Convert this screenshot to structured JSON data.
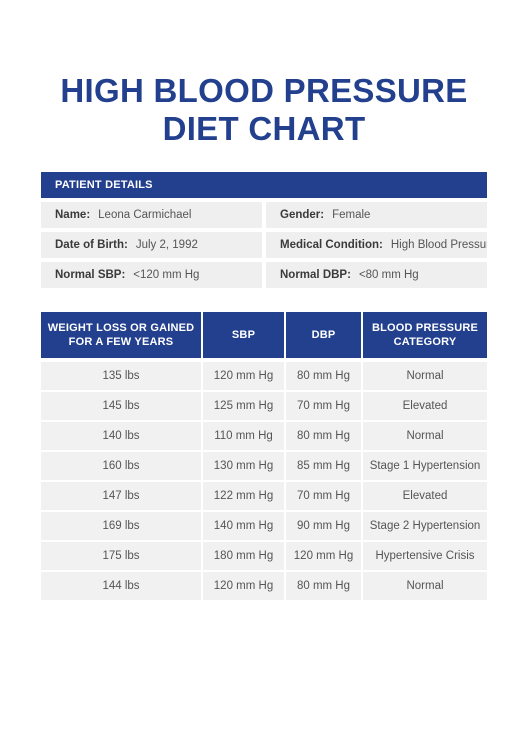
{
  "title": {
    "line1": "HIGH BLOOD PRESSURE",
    "line2": "DIET CHART"
  },
  "patient": {
    "header": "PATIENT DETAILS",
    "rows": [
      [
        {
          "label": "Name:",
          "value": "Leona Carmichael"
        },
        {
          "label": "Gender:",
          "value": "Female"
        }
      ],
      [
        {
          "label": "Date of Birth:",
          "value": "July 2, 1992"
        },
        {
          "label": "Medical Condition:",
          "value": "High Blood Pressure"
        }
      ],
      [
        {
          "label": "Normal SBP:",
          "value": "<120 mm Hg"
        },
        {
          "label": "Normal DBP:",
          "value": "<80 mm Hg"
        }
      ]
    ]
  },
  "table": {
    "headers": [
      "WEIGHT LOSS OR GAINED FOR A FEW YEARS",
      "SBP",
      "DBP",
      "BLOOD PRESSURE CATEGORY"
    ],
    "rows": [
      [
        "135 lbs",
        "120 mm Hg",
        "80 mm Hg",
        "Normal"
      ],
      [
        "145 lbs",
        "125 mm Hg",
        "70 mm Hg",
        "Elevated"
      ],
      [
        "140 lbs",
        "110 mm Hg",
        "80 mm Hg",
        "Normal"
      ],
      [
        "160 lbs",
        "130 mm Hg",
        "85 mm Hg",
        "Stage 1 Hypertension"
      ],
      [
        "147 lbs",
        "122 mm Hg",
        "70 mm Hg",
        "Elevated"
      ],
      [
        "169 lbs",
        "140 mm Hg",
        "90 mm Hg",
        "Stage 2 Hypertension"
      ],
      [
        "175 lbs",
        "180 mm Hg",
        "120 mm Hg",
        "Hypertensive Crisis"
      ],
      [
        "144 lbs",
        "120 mm Hg",
        "80 mm Hg",
        "Normal"
      ]
    ]
  }
}
